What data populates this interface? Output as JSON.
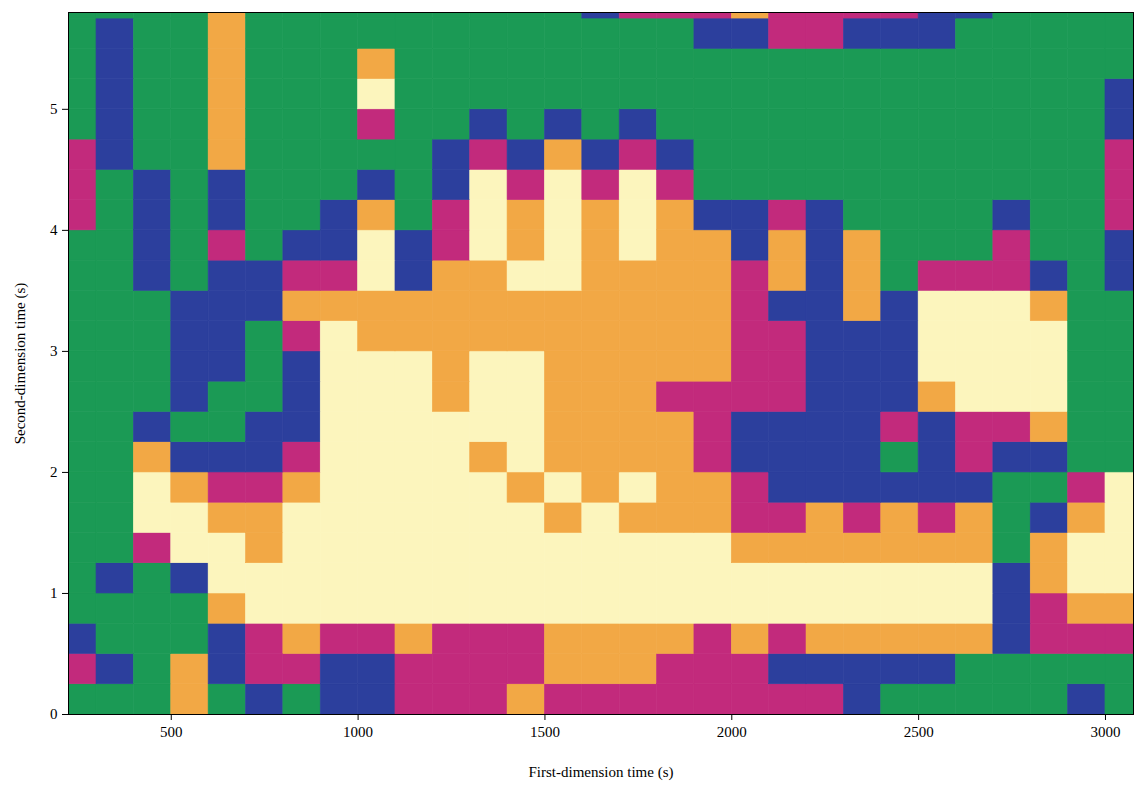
{
  "chart_data": {
    "type": "heatmap",
    "x_label": "First-dimension time (s)",
    "y_label": "Second-dimension time (s)",
    "xlim": [
      225,
      3075
    ],
    "ylim": [
      0,
      5.8
    ],
    "xticks": [
      500,
      1000,
      1500,
      2000,
      2500,
      3000
    ],
    "yticks": [
      0,
      1,
      2,
      3,
      4,
      5
    ],
    "zlim": [
      0,
      4
    ],
    "x": [
      200,
      300,
      400,
      500,
      600,
      700,
      800,
      900,
      1000,
      1100,
      1200,
      1300,
      1400,
      1500,
      1600,
      1700,
      1800,
      1900,
      2000,
      2100,
      2200,
      2300,
      2400,
      2500,
      2600,
      2700,
      2800,
      2900,
      3000
    ],
    "y": [
      0,
      0.25,
      0.5,
      0.75,
      1,
      1.25,
      1.5,
      1.75,
      2,
      2.25,
      2.5,
      2.75,
      3,
      3.25,
      3.5,
      3.75,
      4,
      4.25,
      4.5,
      4.75,
      5,
      5.25,
      5.5,
      5.75
    ],
    "cells": [
      [
        0,
        0,
        0,
        3,
        0,
        1,
        0,
        1,
        1,
        2,
        2,
        2,
        3,
        2,
        2,
        2,
        2,
        2,
        2,
        2,
        2,
        1,
        0,
        0,
        0,
        0,
        0,
        1,
        0
      ],
      [
        2,
        1,
        0,
        3,
        1,
        2,
        2,
        1,
        1,
        2,
        2,
        2,
        2,
        3,
        3,
        3,
        2,
        2,
        2,
        1,
        1,
        1,
        1,
        1,
        0,
        0,
        0,
        0,
        0
      ],
      [
        1,
        0,
        0,
        0,
        1,
        2,
        3,
        2,
        2,
        3,
        2,
        2,
        2,
        3,
        3,
        3,
        3,
        2,
        3,
        2,
        3,
        3,
        3,
        3,
        3,
        1,
        2,
        2,
        2
      ],
      [
        0,
        0,
        0,
        0,
        3,
        4,
        4,
        4,
        4,
        4,
        4,
        4,
        4,
        4,
        4,
        4,
        4,
        4,
        4,
        4,
        4,
        4,
        4,
        4,
        4,
        1,
        2,
        3,
        3
      ],
      [
        0,
        1,
        0,
        1,
        4,
        4,
        4,
        4,
        4,
        4,
        4,
        4,
        4,
        4,
        4,
        4,
        4,
        4,
        4,
        4,
        4,
        4,
        4,
        4,
        4,
        1,
        3,
        4,
        4
      ],
      [
        0,
        0,
        2,
        4,
        4,
        3,
        4,
        4,
        4,
        4,
        4,
        4,
        4,
        4,
        4,
        4,
        4,
        4,
        3,
        3,
        3,
        3,
        3,
        3,
        3,
        0,
        3,
        4,
        4
      ],
      [
        0,
        0,
        4,
        4,
        3,
        3,
        4,
        4,
        4,
        4,
        4,
        4,
        4,
        3,
        4,
        3,
        3,
        3,
        2,
        2,
        3,
        2,
        3,
        2,
        3,
        0,
        1,
        3,
        4
      ],
      [
        0,
        0,
        4,
        3,
        2,
        2,
        3,
        4,
        4,
        4,
        4,
        4,
        3,
        4,
        3,
        4,
        3,
        3,
        2,
        1,
        1,
        1,
        1,
        1,
        1,
        0,
        0,
        2,
        4
      ],
      [
        0,
        0,
        3,
        1,
        1,
        1,
        2,
        4,
        4,
        4,
        4,
        3,
        4,
        3,
        3,
        3,
        3,
        2,
        1,
        1,
        1,
        1,
        0,
        1,
        2,
        1,
        1,
        0,
        0
      ],
      [
        0,
        0,
        1,
        0,
        0,
        1,
        1,
        4,
        4,
        4,
        4,
        4,
        4,
        3,
        3,
        3,
        3,
        2,
        1,
        1,
        1,
        1,
        2,
        1,
        2,
        2,
        3,
        0,
        0
      ],
      [
        0,
        0,
        0,
        1,
        0,
        0,
        1,
        4,
        4,
        4,
        3,
        4,
        4,
        3,
        3,
        3,
        2,
        2,
        2,
        2,
        1,
        1,
        1,
        3,
        4,
        4,
        4,
        0,
        0
      ],
      [
        0,
        0,
        0,
        1,
        1,
        0,
        1,
        4,
        4,
        4,
        3,
        4,
        4,
        3,
        3,
        3,
        3,
        3,
        2,
        2,
        1,
        1,
        1,
        4,
        4,
        4,
        4,
        0,
        0
      ],
      [
        0,
        0,
        0,
        1,
        1,
        0,
        2,
        4,
        3,
        3,
        3,
        3,
        3,
        3,
        3,
        3,
        3,
        3,
        2,
        2,
        1,
        1,
        1,
        4,
        4,
        4,
        4,
        0,
        0
      ],
      [
        0,
        0,
        0,
        1,
        1,
        1,
        3,
        3,
        3,
        3,
        3,
        3,
        3,
        3,
        3,
        3,
        3,
        3,
        2,
        1,
        1,
        3,
        1,
        4,
        4,
        4,
        3,
        0,
        0
      ],
      [
        0,
        0,
        1,
        0,
        1,
        1,
        2,
        2,
        4,
        1,
        3,
        3,
        4,
        4,
        3,
        3,
        3,
        3,
        2,
        3,
        1,
        3,
        0,
        2,
        2,
        2,
        1,
        0,
        1
      ],
      [
        0,
        0,
        1,
        0,
        2,
        0,
        1,
        1,
        4,
        1,
        2,
        4,
        3,
        4,
        3,
        4,
        3,
        3,
        1,
        3,
        1,
        3,
        0,
        0,
        0,
        2,
        0,
        0,
        1
      ],
      [
        2,
        0,
        1,
        0,
        1,
        0,
        0,
        1,
        3,
        0,
        2,
        4,
        3,
        4,
        3,
        4,
        3,
        1,
        1,
        2,
        1,
        0,
        0,
        0,
        0,
        1,
        0,
        0,
        2
      ],
      [
        2,
        0,
        1,
        0,
        1,
        0,
        0,
        0,
        1,
        0,
        1,
        4,
        2,
        4,
        2,
        4,
        2,
        0,
        0,
        0,
        0,
        0,
        0,
        0,
        0,
        0,
        0,
        0,
        2
      ],
      [
        2,
        1,
        0,
        0,
        3,
        0,
        0,
        0,
        0,
        0,
        1,
        2,
        1,
        3,
        1,
        2,
        1,
        0,
        0,
        0,
        0,
        0,
        0,
        0,
        0,
        0,
        0,
        0,
        2
      ],
      [
        0,
        1,
        0,
        0,
        3,
        0,
        0,
        0,
        2,
        0,
        0,
        1,
        0,
        1,
        0,
        1,
        0,
        0,
        0,
        0,
        0,
        0,
        0,
        0,
        0,
        0,
        0,
        0,
        1
      ],
      [
        0,
        1,
        0,
        0,
        3,
        0,
        0,
        0,
        4,
        0,
        0,
        0,
        0,
        0,
        0,
        0,
        0,
        0,
        0,
        0,
        0,
        0,
        0,
        0,
        0,
        0,
        0,
        0,
        1
      ],
      [
        0,
        1,
        0,
        0,
        3,
        0,
        0,
        0,
        3,
        0,
        0,
        0,
        0,
        0,
        0,
        0,
        0,
        0,
        0,
        0,
        0,
        0,
        0,
        0,
        0,
        0,
        0,
        0,
        0
      ],
      [
        0,
        1,
        0,
        0,
        3,
        0,
        0,
        0,
        0,
        0,
        0,
        0,
        0,
        0,
        0,
        0,
        0,
        1,
        1,
        2,
        2,
        1,
        1,
        1,
        0,
        0,
        0,
        0,
        0
      ],
      [
        0,
        0,
        0,
        0,
        3,
        0,
        0,
        0,
        0,
        0,
        0,
        0,
        0,
        0,
        1,
        2,
        2,
        2,
        3,
        2,
        2,
        2,
        2,
        1,
        1,
        0,
        0,
        0,
        0
      ]
    ]
  }
}
